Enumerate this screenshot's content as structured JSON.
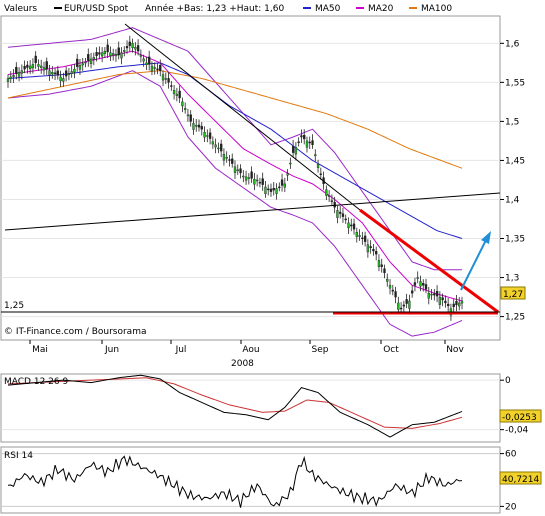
{
  "header": {
    "valeurs": "Valeurs",
    "instrument": "EUR/USD Spot",
    "range": "Année +Bas: 1,23 +Haut: 1,60",
    "ma50": "MA50",
    "ma20": "MA20",
    "ma100": "MA100"
  },
  "colors": {
    "instrument": "#000000",
    "ma50": "#2222cc",
    "ma20": "#cc00cc",
    "ma100": "#e07a10",
    "bollinger": "#9a28c8",
    "candle": "#222222",
    "candle_up": "#22bb22",
    "trend_red": "#ee0000",
    "arrow_blue": "#1f8fd8",
    "macd_signal": "#cc3333",
    "last_box": "#f2d22a"
  },
  "chart_data": [
    {
      "type": "candlestick",
      "panel": "price",
      "watermark": "© IT-Finance.com / Boursorama",
      "x_labels": [
        "Mai",
        "Jun",
        "Jul",
        "Aou",
        "Sep",
        "Oct",
        "Nov"
      ],
      "year_label": "2008",
      "y_ticks": [
        "1,6",
        "1,55",
        "1,5",
        "1,45",
        "1,4",
        "1,35",
        "1,3",
        "1,25"
      ],
      "ylim": [
        1.22,
        1.635
      ],
      "support_label": "1,25",
      "support_level": 1.25,
      "last_price": "1,27",
      "close_path": [
        [
          0,
          1.555
        ],
        [
          5,
          1.565
        ],
        [
          10,
          1.575
        ],
        [
          15,
          1.565
        ],
        [
          20,
          1.555
        ],
        [
          25,
          1.57
        ],
        [
          30,
          1.58
        ],
        [
          35,
          1.59
        ],
        [
          40,
          1.585
        ],
        [
          45,
          1.6
        ],
        [
          50,
          1.575
        ],
        [
          55,
          1.565
        ],
        [
          60,
          1.54
        ],
        [
          63,
          1.525
        ],
        [
          66,
          1.5
        ],
        [
          70,
          1.49
        ],
        [
          75,
          1.47
        ],
        [
          80,
          1.45
        ],
        [
          85,
          1.43
        ],
        [
          90,
          1.425
        ],
        [
          95,
          1.41
        ],
        [
          100,
          1.42
        ],
        [
          103,
          1.46
        ],
        [
          106,
          1.48
        ],
        [
          110,
          1.47
        ],
        [
          114,
          1.42
        ],
        [
          118,
          1.39
        ],
        [
          123,
          1.37
        ],
        [
          128,
          1.35
        ],
        [
          133,
          1.33
        ],
        [
          138,
          1.29
        ],
        [
          142,
          1.26
        ],
        [
          145,
          1.27
        ],
        [
          148,
          1.3
        ],
        [
          152,
          1.28
        ],
        [
          156,
          1.275
        ],
        [
          160,
          1.26
        ],
        [
          164,
          1.27
        ]
      ],
      "ma20_path": [
        [
          0,
          1.56
        ],
        [
          20,
          1.57
        ],
        [
          45,
          1.59
        ],
        [
          55,
          1.575
        ],
        [
          65,
          1.535
        ],
        [
          75,
          1.5
        ],
        [
          85,
          1.465
        ],
        [
          95,
          1.445
        ],
        [
          103,
          1.43
        ],
        [
          110,
          1.42
        ],
        [
          118,
          1.4
        ],
        [
          128,
          1.37
        ],
        [
          138,
          1.32
        ],
        [
          146,
          1.29
        ],
        [
          154,
          1.28
        ],
        [
          164,
          1.27
        ]
      ],
      "ma50_path": [
        [
          0,
          1.555
        ],
        [
          20,
          1.56
        ],
        [
          40,
          1.57
        ],
        [
          55,
          1.575
        ],
        [
          65,
          1.56
        ],
        [
          80,
          1.52
        ],
        [
          95,
          1.49
        ],
        [
          110,
          1.45
        ],
        [
          125,
          1.42
        ],
        [
          140,
          1.39
        ],
        [
          155,
          1.36
        ],
        [
          164,
          1.35
        ]
      ],
      "ma100_path": [
        [
          0,
          1.53
        ],
        [
          20,
          1.545
        ],
        [
          40,
          1.56
        ],
        [
          55,
          1.565
        ],
        [
          70,
          1.555
        ],
        [
          85,
          1.54
        ],
        [
          100,
          1.525
        ],
        [
          115,
          1.51
        ],
        [
          130,
          1.49
        ],
        [
          145,
          1.465
        ],
        [
          164,
          1.44
        ]
      ],
      "boll_upper_path": [
        [
          0,
          1.595
        ],
        [
          15,
          1.6
        ],
        [
          30,
          1.605
        ],
        [
          45,
          1.62
        ],
        [
          55,
          1.605
        ],
        [
          65,
          1.59
        ],
        [
          75,
          1.55
        ],
        [
          85,
          1.51
        ],
        [
          95,
          1.47
        ],
        [
          103,
          1.48
        ],
        [
          110,
          1.49
        ],
        [
          118,
          1.46
        ],
        [
          128,
          1.41
        ],
        [
          138,
          1.36
        ],
        [
          146,
          1.32
        ],
        [
          154,
          1.31
        ],
        [
          164,
          1.31
        ]
      ],
      "boll_lower_path": [
        [
          0,
          1.53
        ],
        [
          15,
          1.535
        ],
        [
          30,
          1.545
        ],
        [
          45,
          1.565
        ],
        [
          55,
          1.545
        ],
        [
          65,
          1.48
        ],
        [
          75,
          1.44
        ],
        [
          85,
          1.415
        ],
        [
          95,
          1.39
        ],
        [
          103,
          1.38
        ],
        [
          110,
          1.37
        ],
        [
          118,
          1.34
        ],
        [
          128,
          1.29
        ],
        [
          138,
          1.24
        ],
        [
          146,
          1.225
        ],
        [
          154,
          1.23
        ],
        [
          164,
          1.245
        ]
      ]
    },
    {
      "type": "line",
      "panel": "macd",
      "label": "MACD 12 26 9",
      "y_ticks": [
        "0",
        "-0,04"
      ],
      "last_value": "-0,0253",
      "ylim": [
        -0.05,
        0.005
      ],
      "macd_path": [
        [
          0,
          -0.004
        ],
        [
          10,
          -0.002
        ],
        [
          20,
          0.0
        ],
        [
          30,
          -0.002
        ],
        [
          40,
          0.002
        ],
        [
          48,
          0.004
        ],
        [
          55,
          0.001
        ],
        [
          62,
          -0.01
        ],
        [
          70,
          -0.018
        ],
        [
          78,
          -0.026
        ],
        [
          86,
          -0.028
        ],
        [
          94,
          -0.032
        ],
        [
          100,
          -0.022
        ],
        [
          106,
          -0.006
        ],
        [
          112,
          -0.01
        ],
        [
          120,
          -0.026
        ],
        [
          130,
          -0.036
        ],
        [
          138,
          -0.046
        ],
        [
          146,
          -0.036
        ],
        [
          154,
          -0.034
        ],
        [
          164,
          -0.0253
        ]
      ],
      "signal_path": [
        [
          0,
          -0.003
        ],
        [
          20,
          -0.001
        ],
        [
          40,
          0.001
        ],
        [
          50,
          0.002
        ],
        [
          60,
          -0.003
        ],
        [
          70,
          -0.012
        ],
        [
          80,
          -0.02
        ],
        [
          92,
          -0.026
        ],
        [
          100,
          -0.025
        ],
        [
          108,
          -0.016
        ],
        [
          116,
          -0.018
        ],
        [
          126,
          -0.028
        ],
        [
          136,
          -0.038
        ],
        [
          146,
          -0.039
        ],
        [
          156,
          -0.035
        ],
        [
          164,
          -0.03
        ]
      ]
    },
    {
      "type": "line",
      "panel": "rsi",
      "label": "RSI 14",
      "y_ticks": [
        "60",
        "20"
      ],
      "last_value": "40,7214",
      "ylim": [
        15,
        65
      ],
      "rsi_path": [
        [
          0,
          34
        ],
        [
          6,
          44
        ],
        [
          12,
          38
        ],
        [
          18,
          48
        ],
        [
          24,
          40
        ],
        [
          30,
          52
        ],
        [
          36,
          46
        ],
        [
          42,
          56
        ],
        [
          48,
          50
        ],
        [
          54,
          44
        ],
        [
          60,
          36
        ],
        [
          66,
          28
        ],
        [
          72,
          26
        ],
        [
          78,
          30
        ],
        [
          84,
          24
        ],
        [
          90,
          36
        ],
        [
          96,
          20
        ],
        [
          102,
          30
        ],
        [
          106,
          55
        ],
        [
          110,
          44
        ],
        [
          116,
          36
        ],
        [
          122,
          30
        ],
        [
          128,
          26
        ],
        [
          134,
          24
        ],
        [
          140,
          36
        ],
        [
          146,
          30
        ],
        [
          152,
          42
        ],
        [
          158,
          36
        ],
        [
          164,
          40.7214
        ]
      ]
    }
  ]
}
